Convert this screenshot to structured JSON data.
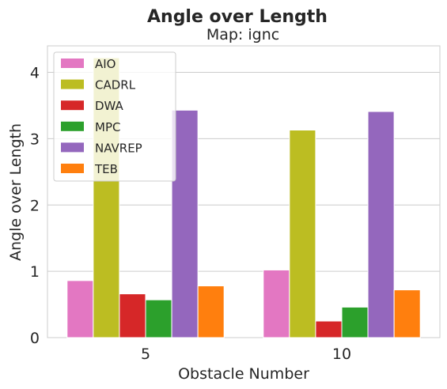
{
  "chart_data": {
    "type": "bar",
    "title": "Angle over Length",
    "subtitle": "Map: ignc",
    "xlabel": "Obstacle Number",
    "ylabel": "Angle over Length",
    "categories": [
      "5",
      "10"
    ],
    "ylim": [
      0,
      4.4
    ],
    "yticks": [
      0,
      1,
      2,
      3,
      4
    ],
    "grid": true,
    "legend_position": "top-left",
    "series": [
      {
        "name": "AIO",
        "color": "#e377c2",
        "values": [
          0.86,
          1.02
        ]
      },
      {
        "name": "CADRL",
        "color": "#bcbd22",
        "values": [
          4.22,
          3.13
        ]
      },
      {
        "name": "DWA",
        "color": "#d62728",
        "values": [
          0.66,
          0.25
        ]
      },
      {
        "name": "MPC",
        "color": "#2ca02c",
        "values": [
          0.57,
          0.46
        ]
      },
      {
        "name": "NAVREP",
        "color": "#9467bd",
        "values": [
          3.43,
          3.41
        ]
      },
      {
        "name": "TEB",
        "color": "#ff7f0e",
        "values": [
          0.78,
          0.72
        ]
      }
    ]
  }
}
